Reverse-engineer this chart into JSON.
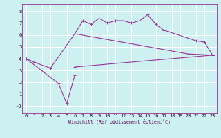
{
  "xlabel": "Windchill (Refroidissement éolien,°C)",
  "bg_color": "#cdf0f0",
  "grid_color": "#ffffff",
  "line_color": "#993399",
  "xlim": [
    -0.5,
    23.5
  ],
  "ylim": [
    -0.6,
    8.6
  ],
  "yticks": [
    0,
    1,
    2,
    3,
    4,
    5,
    6,
    7,
    8
  ],
  "ytick_labels": [
    "-0",
    "1",
    "2",
    "3",
    "4",
    "5",
    "6",
    "7",
    "8"
  ],
  "xticks": [
    0,
    1,
    2,
    3,
    4,
    5,
    6,
    7,
    8,
    9,
    10,
    11,
    12,
    13,
    14,
    15,
    16,
    17,
    18,
    19,
    20,
    21,
    22,
    23
  ],
  "curves": [
    {
      "x": [
        0,
        1,
        3,
        6,
        20,
        23
      ],
      "y": [
        4.0,
        3.7,
        3.2,
        6.1,
        4.4,
        4.3
      ]
    },
    {
      "x": [
        0,
        4,
        5,
        6
      ],
      "y": [
        4.0,
        1.9,
        0.2,
        2.6
      ]
    },
    {
      "x": [
        6,
        7,
        8,
        9,
        10,
        11,
        12,
        13,
        14,
        15,
        16,
        17,
        21,
        22,
        23
      ],
      "y": [
        6.1,
        7.2,
        6.9,
        7.4,
        7.0,
        7.2,
        7.2,
        7.0,
        7.2,
        7.7,
        6.9,
        6.4,
        5.5,
        5.4,
        4.3
      ]
    },
    {
      "x": [
        6,
        23
      ],
      "y": [
        3.3,
        4.3
      ]
    }
  ]
}
